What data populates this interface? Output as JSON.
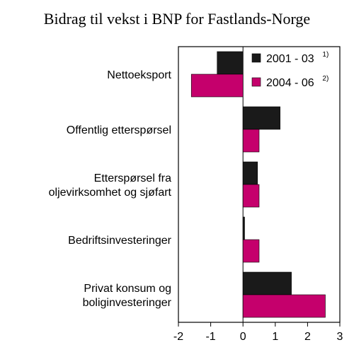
{
  "chart_data": {
    "type": "bar",
    "orientation": "horizontal",
    "title": "Bidrag til vekst i BNP for Fastlands-Norge",
    "categories": [
      [
        "Nettoeksport"
      ],
      [
        "Offentlig etterspørsel"
      ],
      [
        "Etterspørsel fra",
        "oljevirksomhet og sjøfart"
      ],
      [
        "Bedriftsinvesteringer"
      ],
      [
        "Privat konsum og",
        "boliginvesteringer"
      ]
    ],
    "series": [
      {
        "name": "2001 - 03",
        "footnote": "1)",
        "values": [
          -0.8,
          1.15,
          0.45,
          0.05,
          1.5
        ]
      },
      {
        "name": "2004 - 06",
        "footnote": "2)",
        "values": [
          -1.6,
          0.5,
          0.5,
          0.5,
          2.55
        ]
      }
    ],
    "xlim": [
      -2,
      3
    ],
    "xticks": [
      "-2",
      "-1",
      "0",
      "1",
      "2",
      "3"
    ],
    "legend_position": "top-right",
    "colors": [
      "#1a1a1a",
      "#c5006c"
    ],
    "grid": false
  }
}
